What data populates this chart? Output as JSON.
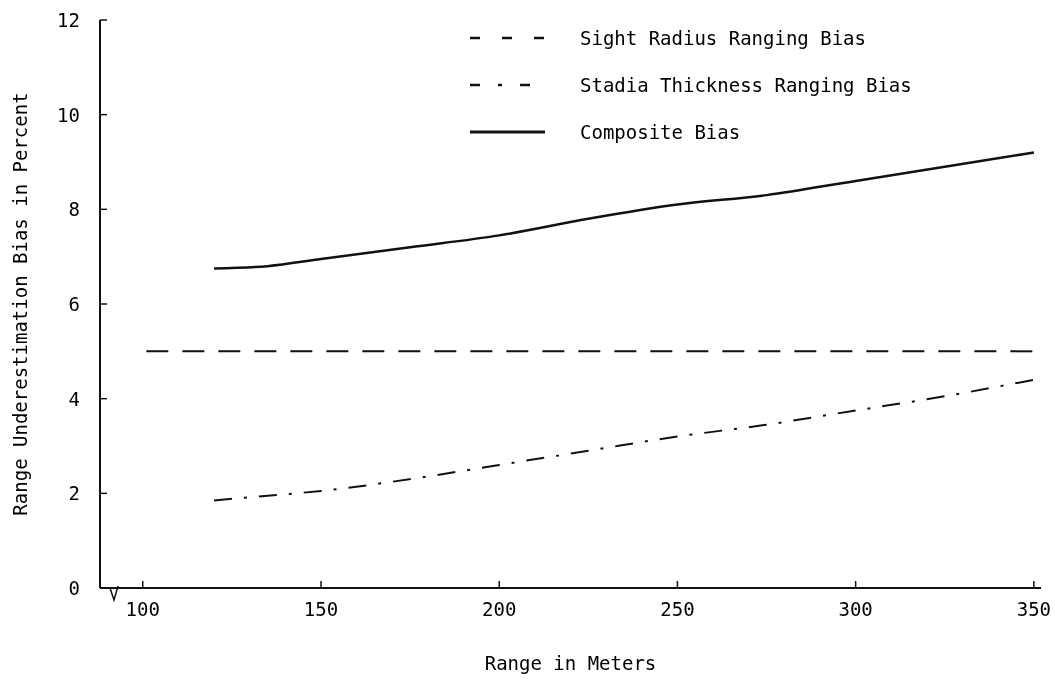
{
  "chart_data": {
    "type": "line",
    "xlabel": "Range in Meters",
    "ylabel": "Range Underestimation Bias in Percent",
    "xlim": [
      88,
      352
    ],
    "xticks": [
      100,
      150,
      200,
      250,
      300,
      350
    ],
    "ylim": [
      0,
      12
    ],
    "yticks": [
      0,
      2,
      4,
      6,
      8,
      10,
      12
    ],
    "grid": false,
    "legend": "top right",
    "series": [
      {
        "name": "Sight Radius Ranging Bias",
        "color": "#111111",
        "line_style": "dashed",
        "x": [
          101,
          350
        ],
        "values": [
          5.0,
          5.0
        ]
      },
      {
        "name": "Stadia Thickness Ranging Bias",
        "color": "#111111",
        "line_style": "dashdot",
        "x": [
          120,
          135,
          150,
          175,
          200,
          225,
          250,
          275,
          300,
          325,
          350
        ],
        "values": [
          1.85,
          1.95,
          2.05,
          2.3,
          2.6,
          2.9,
          3.2,
          3.45,
          3.75,
          4.05,
          4.4
        ]
      },
      {
        "name": "Composite Bias",
        "color": "#111111",
        "line_style": "solid",
        "x": [
          120,
          135,
          150,
          175,
          200,
          225,
          250,
          275,
          300,
          325,
          350
        ],
        "values": [
          6.75,
          6.8,
          6.95,
          7.2,
          7.45,
          7.8,
          8.1,
          8.3,
          8.6,
          8.9,
          9.2
        ]
      }
    ]
  }
}
